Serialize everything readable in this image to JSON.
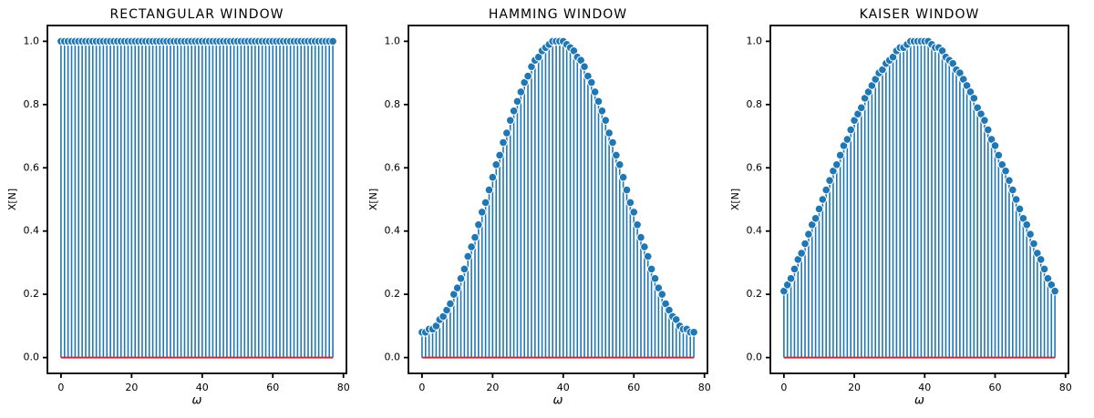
{
  "chart_data": [
    {
      "type": "stem",
      "title": "RECTANGULAR WINDOW",
      "x_label": "ω",
      "y_label": "X[N]",
      "color": "#1f77b4",
      "baseline_color": "#d62728",
      "x": [
        0,
        1,
        2,
        3,
        4,
        5,
        6,
        7,
        8,
        9,
        10,
        11,
        12,
        13,
        14,
        15,
        16,
        17,
        18,
        19,
        20,
        21,
        22,
        23,
        24,
        25,
        26,
        27,
        28,
        29,
        30,
        31,
        32,
        33,
        34,
        35,
        36,
        37,
        38,
        39,
        40,
        41,
        42,
        43,
        44,
        45,
        46,
        47,
        48,
        49,
        50,
        51,
        52,
        53,
        54,
        55,
        56,
        57,
        58,
        59,
        60,
        61,
        62,
        63,
        64,
        65,
        66,
        67,
        68,
        69,
        70,
        71,
        72,
        73,
        74,
        75,
        76,
        77
      ],
      "values": [
        1,
        1,
        1,
        1,
        1,
        1,
        1,
        1,
        1,
        1,
        1,
        1,
        1,
        1,
        1,
        1,
        1,
        1,
        1,
        1,
        1,
        1,
        1,
        1,
        1,
        1,
        1,
        1,
        1,
        1,
        1,
        1,
        1,
        1,
        1,
        1,
        1,
        1,
        1,
        1,
        1,
        1,
        1,
        1,
        1,
        1,
        1,
        1,
        1,
        1,
        1,
        1,
        1,
        1,
        1,
        1,
        1,
        1,
        1,
        1,
        1,
        1,
        1,
        1,
        1,
        1,
        1,
        1,
        1,
        1,
        1,
        1,
        1,
        1,
        1,
        1,
        1,
        1
      ],
      "xlim": [
        -3.85,
        80.85
      ],
      "xticks": [
        0,
        20,
        40,
        60,
        80
      ],
      "ylim": [
        -0.05,
        1.05
      ],
      "yticks": [
        {
          "value": 0,
          "label": "0.0"
        },
        {
          "value": 0.2,
          "label": "0.2"
        },
        {
          "value": 0.4,
          "label": "0.4"
        },
        {
          "value": 0.6,
          "label": "0.6"
        },
        {
          "value": 0.8,
          "label": "0.8"
        },
        {
          "value": 1,
          "label": "1.0"
        }
      ]
    },
    {
      "type": "stem",
      "title": "HAMMING WINDOW",
      "x_label": "ω",
      "y_label": "X[N]",
      "color": "#1f77b4",
      "baseline_color": "#d62728",
      "x": [
        0,
        1,
        2,
        3,
        4,
        5,
        6,
        7,
        8,
        9,
        10,
        11,
        12,
        13,
        14,
        15,
        16,
        17,
        18,
        19,
        20,
        21,
        22,
        23,
        24,
        25,
        26,
        27,
        28,
        29,
        30,
        31,
        32,
        33,
        34,
        35,
        36,
        37,
        38,
        39,
        40,
        41,
        42,
        43,
        44,
        45,
        46,
        47,
        48,
        49,
        50,
        51,
        52,
        53,
        54,
        55,
        56,
        57,
        58,
        59,
        60,
        61,
        62,
        63,
        64,
        65,
        66,
        67,
        68,
        69,
        70,
        71,
        72,
        73,
        74,
        75,
        76,
        77
      ],
      "values": [
        0.08,
        0.08,
        0.09,
        0.09,
        0.1,
        0.12,
        0.13,
        0.15,
        0.17,
        0.2,
        0.22,
        0.25,
        0.28,
        0.32,
        0.35,
        0.38,
        0.42,
        0.46,
        0.49,
        0.53,
        0.57,
        0.61,
        0.64,
        0.68,
        0.71,
        0.75,
        0.78,
        0.81,
        0.84,
        0.87,
        0.89,
        0.92,
        0.94,
        0.95,
        0.97,
        0.98,
        0.99,
        1.0,
        1.0,
        1.0,
        1.0,
        0.99,
        0.98,
        0.97,
        0.95,
        0.94,
        0.92,
        0.89,
        0.87,
        0.84,
        0.81,
        0.78,
        0.75,
        0.71,
        0.68,
        0.64,
        0.61,
        0.57,
        0.53,
        0.49,
        0.46,
        0.42,
        0.38,
        0.35,
        0.32,
        0.28,
        0.25,
        0.22,
        0.2,
        0.17,
        0.15,
        0.13,
        0.12,
        0.1,
        0.09,
        0.09,
        0.08,
        0.08
      ],
      "xlim": [
        -3.85,
        80.85
      ],
      "xticks": [
        0,
        20,
        40,
        60,
        80
      ],
      "ylim": [
        -0.05,
        1.05
      ],
      "yticks": [
        {
          "value": 0,
          "label": "0.0"
        },
        {
          "value": 0.2,
          "label": "0.2"
        },
        {
          "value": 0.4,
          "label": "0.4"
        },
        {
          "value": 0.6,
          "label": "0.6"
        },
        {
          "value": 0.8,
          "label": "0.8"
        },
        {
          "value": 1,
          "label": "1.0"
        }
      ]
    },
    {
      "type": "stem",
      "title": "KAISER WINDOW",
      "x_label": "ω",
      "y_label": "X[N]",
      "color": "#1f77b4",
      "baseline_color": "#d62728",
      "x": [
        0,
        1,
        2,
        3,
        4,
        5,
        6,
        7,
        8,
        9,
        10,
        11,
        12,
        13,
        14,
        15,
        16,
        17,
        18,
        19,
        20,
        21,
        22,
        23,
        24,
        25,
        26,
        27,
        28,
        29,
        30,
        31,
        32,
        33,
        34,
        35,
        36,
        37,
        38,
        39,
        40,
        41,
        42,
        43,
        44,
        45,
        46,
        47,
        48,
        49,
        50,
        51,
        52,
        53,
        54,
        55,
        56,
        57,
        58,
        59,
        60,
        61,
        62,
        63,
        64,
        65,
        66,
        67,
        68,
        69,
        70,
        71,
        72,
        73,
        74,
        75,
        76,
        77
      ],
      "values": [
        0.21,
        0.23,
        0.25,
        0.28,
        0.31,
        0.33,
        0.36,
        0.39,
        0.42,
        0.44,
        0.47,
        0.5,
        0.53,
        0.56,
        0.59,
        0.61,
        0.64,
        0.67,
        0.69,
        0.72,
        0.75,
        0.77,
        0.79,
        0.82,
        0.84,
        0.86,
        0.88,
        0.9,
        0.91,
        0.93,
        0.94,
        0.95,
        0.97,
        0.98,
        0.98,
        0.99,
        1.0,
        1.0,
        1.0,
        1.0,
        1.0,
        1.0,
        0.99,
        0.98,
        0.98,
        0.97,
        0.95,
        0.94,
        0.93,
        0.91,
        0.9,
        0.88,
        0.86,
        0.84,
        0.82,
        0.79,
        0.77,
        0.75,
        0.72,
        0.69,
        0.67,
        0.64,
        0.61,
        0.59,
        0.56,
        0.53,
        0.5,
        0.47,
        0.44,
        0.42,
        0.39,
        0.36,
        0.33,
        0.31,
        0.28,
        0.25,
        0.23,
        0.21
      ],
      "xlim": [
        -3.85,
        80.85
      ],
      "xticks": [
        0,
        20,
        40,
        60,
        80
      ],
      "ylim": [
        -0.05,
        1.05
      ],
      "yticks": [
        {
          "value": 0,
          "label": "0.0"
        },
        {
          "value": 0.2,
          "label": "0.2"
        },
        {
          "value": 0.4,
          "label": "0.4"
        },
        {
          "value": 0.6,
          "label": "0.6"
        },
        {
          "value": 0.8,
          "label": "0.8"
        },
        {
          "value": 1,
          "label": "1.0"
        }
      ]
    }
  ]
}
